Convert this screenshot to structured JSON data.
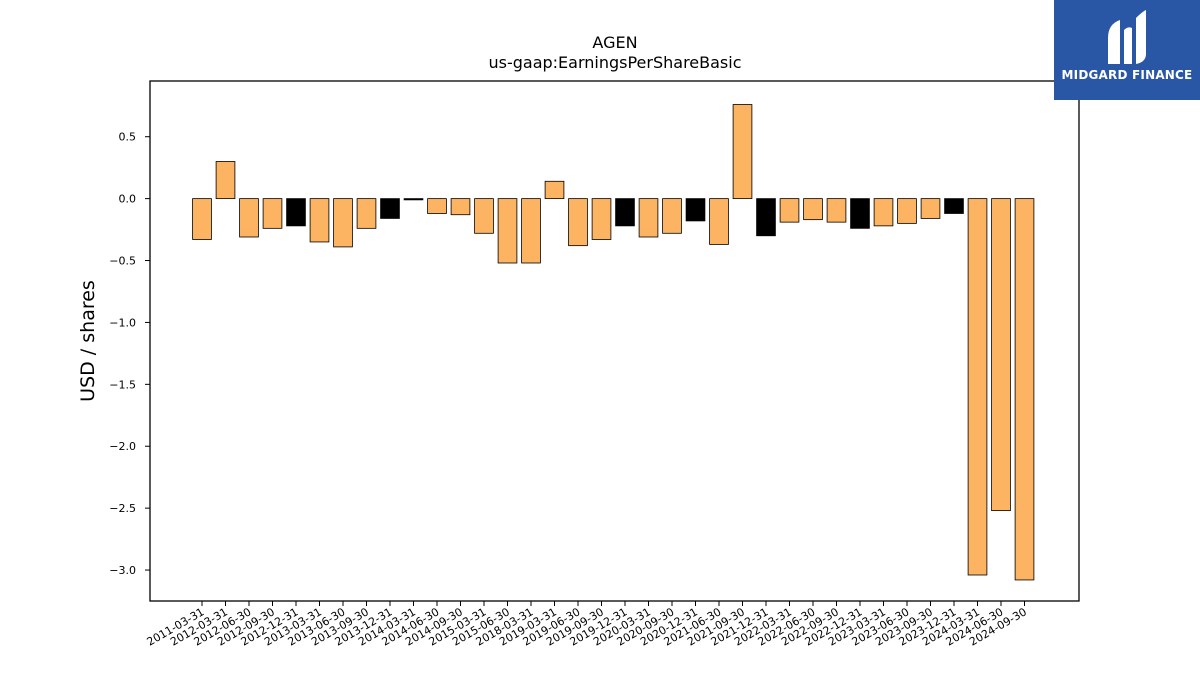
{
  "brand": {
    "name": "MIDGARD FINANCE",
    "bg_color": "#2a56a6"
  },
  "chart_data": {
    "type": "bar",
    "title": "AGEN",
    "subtitle": "us-gaap:EarningsPerShareBasic",
    "xlabel": "",
    "ylabel": "USD / shares",
    "ylim": [
      -3.25,
      0.95
    ],
    "yticks": [
      0.5,
      0.0,
      -0.5,
      -1.0,
      -1.5,
      -2.0,
      -2.5,
      -3.0
    ],
    "grid": false,
    "colors": {
      "default": "#fdb462",
      "highlight": "#000000",
      "edge": "#000000"
    },
    "categories": [
      "2011-03-31",
      "2012-03-31",
      "2012-06-30",
      "2012-09-30",
      "2012-12-31",
      "2013-03-31",
      "2013-06-30",
      "2013-09-30",
      "2013-12-31",
      "2014-03-31",
      "2014-06-30",
      "2014-09-30",
      "2015-03-31",
      "2015-06-30",
      "2018-03-31",
      "2019-03-31",
      "2019-06-30",
      "2019-09-30",
      "2019-12-31",
      "2020-03-31",
      "2020-09-30",
      "2020-12-31",
      "2021-06-30",
      "2021-09-30",
      "2021-12-31",
      "2022-03-31",
      "2022-06-30",
      "2022-09-30",
      "2022-12-31",
      "2023-03-31",
      "2023-06-30",
      "2023-09-30",
      "2023-12-31",
      "2024-03-31",
      "2024-06-30",
      "2024-09-30"
    ],
    "values": [
      -0.33,
      0.3,
      -0.31,
      -0.24,
      -0.22,
      -0.35,
      -0.39,
      -0.24,
      -0.16,
      -0.01,
      -0.12,
      -0.13,
      -0.28,
      -0.52,
      -0.52,
      0.14,
      -0.38,
      -0.33,
      -0.22,
      -0.31,
      -0.28,
      -0.18,
      -0.37,
      0.76,
      -0.3,
      -0.19,
      -0.17,
      -0.19,
      -0.24,
      -0.22,
      -0.2,
      -0.16,
      -0.12,
      -3.04,
      -2.52,
      -3.08
    ],
    "highlighted": [
      false,
      false,
      false,
      false,
      true,
      false,
      false,
      false,
      true,
      true,
      false,
      false,
      false,
      false,
      false,
      false,
      false,
      false,
      true,
      false,
      false,
      true,
      false,
      false,
      true,
      false,
      false,
      false,
      true,
      false,
      false,
      false,
      true,
      false,
      false,
      false
    ]
  }
}
